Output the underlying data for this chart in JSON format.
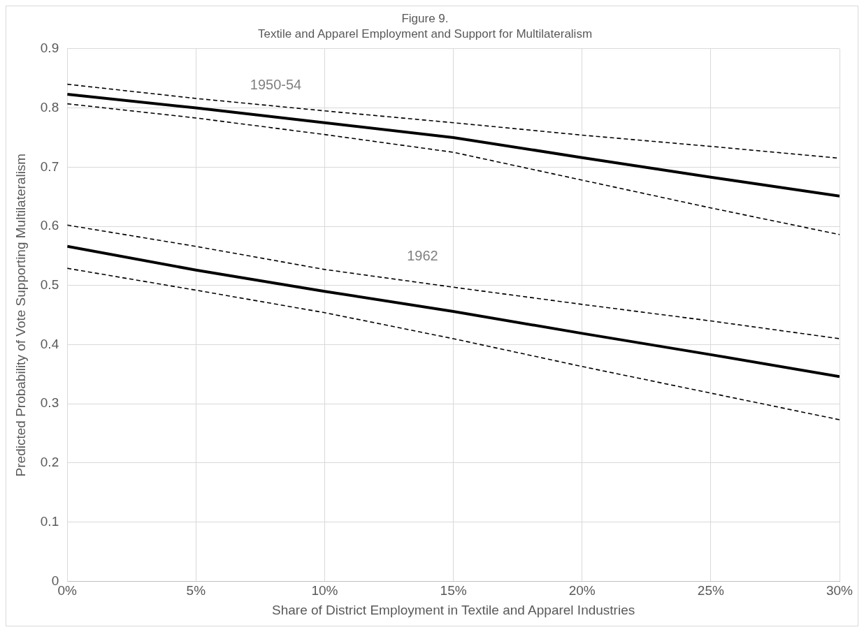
{
  "chart_data": {
    "type": "line",
    "title": "Figure 9.",
    "subtitle": "Textile and Apparel Employment and Support for Multilateralism",
    "xlabel": "Share of District Employment in Textile and Apparel Industries",
    "ylabel": "Predicted Probability of Vote Supporting Multilateralism",
    "x": [
      0,
      5,
      10,
      15,
      20,
      25,
      30
    ],
    "series": [
      {
        "color": "#000000",
        "line_style": "dashed",
        "values": [
          0.84,
          0.816,
          0.795,
          0.775,
          0.754,
          0.735,
          0.715
        ]
      },
      {
        "color": "#000000",
        "line_style": "solid",
        "values": [
          0.823,
          0.8,
          0.775,
          0.75,
          0.716,
          0.683,
          0.651
        ]
      },
      {
        "color": "#000000",
        "line_style": "dashed",
        "values": [
          0.807,
          0.783,
          0.755,
          0.725,
          0.678,
          0.631,
          0.586
        ]
      },
      {
        "color": "#000000",
        "line_style": "dashed",
        "values": [
          0.602,
          0.566,
          0.527,
          0.497,
          0.468,
          0.44,
          0.41
        ]
      },
      {
        "color": "#000000",
        "line_style": "solid",
        "values": [
          0.566,
          0.526,
          0.49,
          0.456,
          0.419,
          0.383,
          0.346
        ]
      },
      {
        "color": "#000000",
        "line_style": "dashed",
        "values": [
          0.529,
          0.492,
          0.454,
          0.41,
          0.363,
          0.318,
          0.273
        ]
      }
    ],
    "xlim": [
      0,
      30
    ],
    "xticks": [
      {
        "value": 0,
        "label": "0%"
      },
      {
        "value": 5,
        "label": "5%"
      },
      {
        "value": 10,
        "label": "10%"
      },
      {
        "value": 15,
        "label": "15%"
      },
      {
        "value": 20,
        "label": "20%"
      },
      {
        "value": 25,
        "label": "25%"
      },
      {
        "value": 30,
        "label": "30%"
      }
    ],
    "ylim": [
      0,
      0.9
    ],
    "yticks": [
      0,
      0.1,
      0.2,
      0.3,
      0.4,
      0.5,
      0.6,
      0.7,
      0.8,
      0.9
    ],
    "annotations": [
      "1950-54",
      "1962"
    ],
    "grid": true,
    "legend": false,
    "marker": "none"
  }
}
